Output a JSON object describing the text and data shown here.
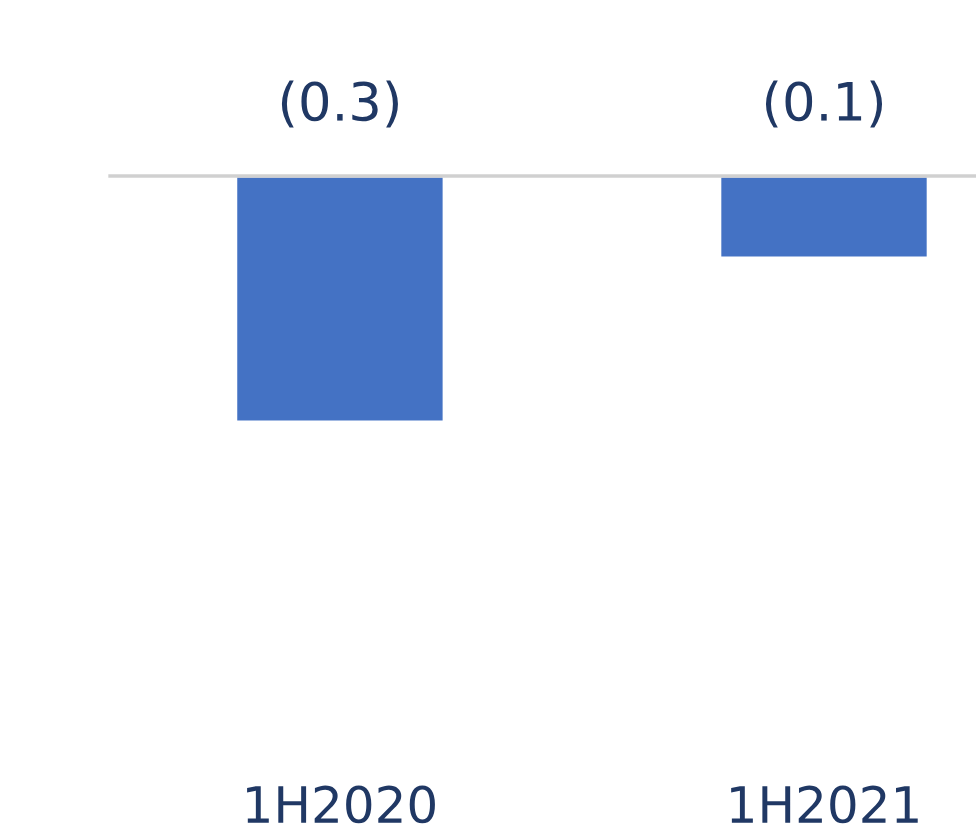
{
  "chart_data": {
    "type": "bar",
    "categories": [
      "1H2020",
      "1H2021"
    ],
    "values": [
      -0.3,
      -0.1
    ],
    "value_labels": [
      "(0.3)",
      "(0.1)"
    ],
    "color": "#4472c4",
    "tick_labels": "x",
    "grid": false,
    "legend": false
  }
}
